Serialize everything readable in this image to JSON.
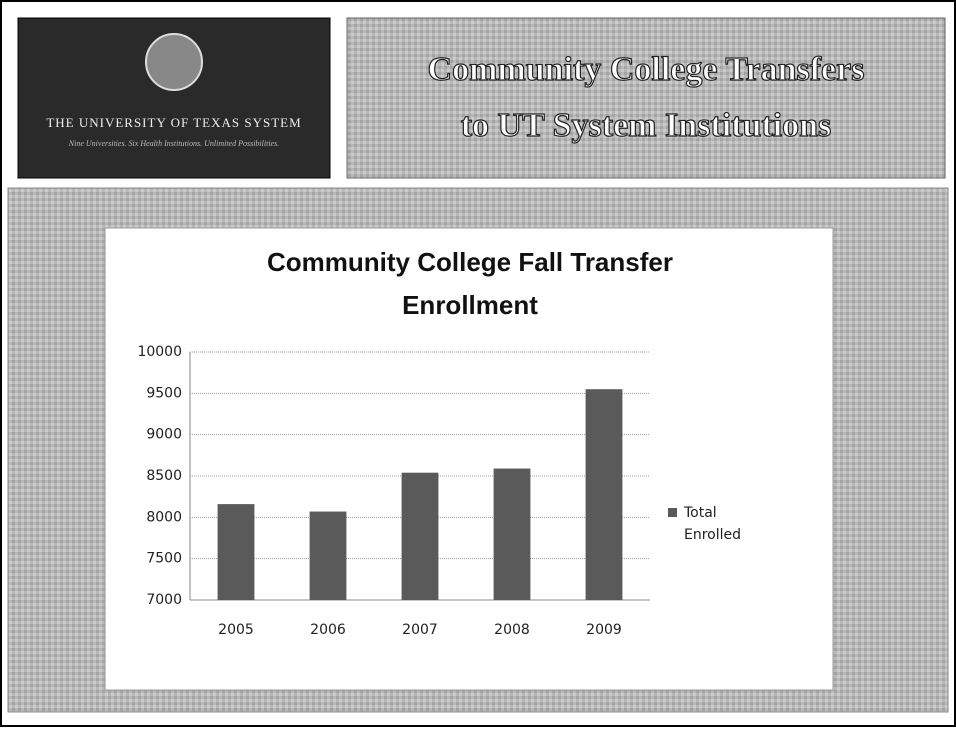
{
  "header": {
    "logo_title": "The University of Texas System",
    "logo_subtitle": "Nine Universities. Six Health Institutions. Unlimited Possibilities.",
    "title_lines": [
      "Community College Transfers",
      "to UT System Institutions"
    ]
  },
  "chart_data": {
    "type": "bar",
    "title_lines": [
      "Community College Fall Transfer",
      "Enrollment"
    ],
    "categories": [
      "2005",
      "2006",
      "2007",
      "2008",
      "2009"
    ],
    "series": [
      {
        "name": "Total Enrolled",
        "color": "#5a5a5a",
        "values": [
          8160,
          8070,
          8540,
          8590,
          9550
        ]
      }
    ],
    "ylim": [
      7000,
      10000
    ],
    "yticks": [
      7000,
      7500,
      8000,
      8500,
      9000,
      9500,
      10000
    ],
    "grid": true,
    "legend": "right"
  }
}
